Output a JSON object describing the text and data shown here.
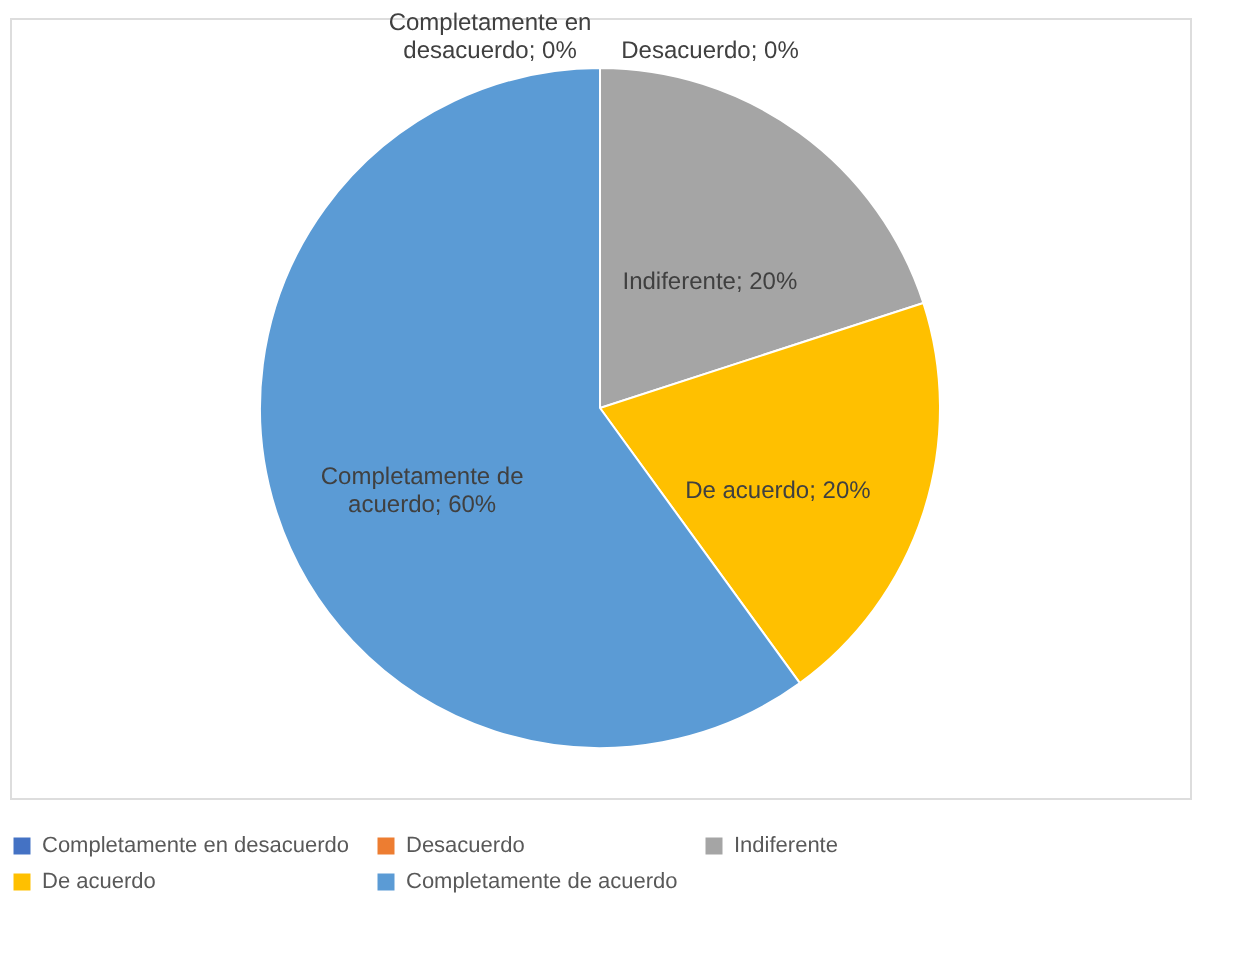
{
  "chart_data": {
    "type": "pie",
    "categories": [
      "Completamente en desacuerdo",
      "Desacuerdo",
      "Indiferente",
      "De acuerdo",
      "Completamente de acuerdo"
    ],
    "values": [
      0,
      0,
      20,
      20,
      60
    ],
    "colors": [
      "#4472c4",
      "#ed7d31",
      "#a5a5a5",
      "#ffc000",
      "#5b9bd5"
    ],
    "value_labels": [
      "Completamente en desacuerdo; 0%",
      "Desacuerdo; 0%",
      "Indiferente; 20%",
      "De acuerdo; 20%",
      "Completamente de acuerdo; 60%"
    ],
    "legend": "bottom"
  }
}
